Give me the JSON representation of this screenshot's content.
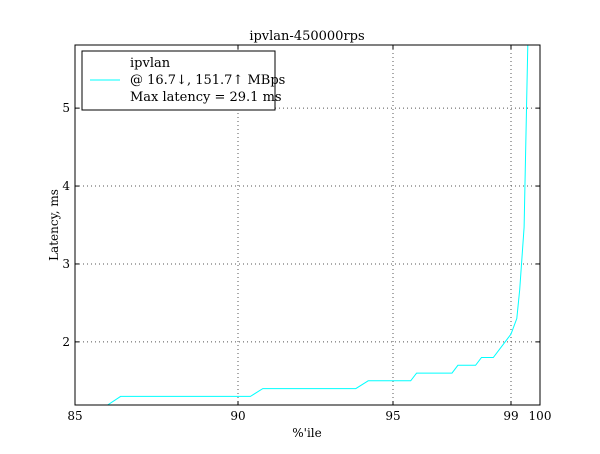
{
  "chart_data": {
    "type": "line",
    "title": "ipvlan-450000rps",
    "xlabel": "%'ile",
    "ylabel": "Latency, ms",
    "xlim": [
      85,
      100
    ],
    "ylim": [
      1.19,
      5.81
    ],
    "xticks": [
      85,
      90,
      95,
      99,
      100
    ],
    "yticks": [
      2,
      3,
      4,
      5
    ],
    "grid": true,
    "legend_placement": "top-left",
    "series": [
      {
        "name": "ipvlan",
        "legend_lines": [
          "ipvlan",
          "@ 16.7↓, 151.7↑ MBps",
          "Max latency = 29.1 ms"
        ],
        "color": "#00ffff",
        "x": [
          86.0,
          86.4,
          90.4,
          90.8,
          93.8,
          94.2,
          95.6,
          95.8,
          97.0,
          97.2,
          97.8,
          98.0,
          98.4,
          99.0,
          99.2,
          99.3,
          99.45,
          99.58,
          99.7
        ],
        "y": [
          1.19,
          1.3,
          1.3,
          1.4,
          1.4,
          1.5,
          1.5,
          1.6,
          1.6,
          1.7,
          1.7,
          1.8,
          1.8,
          2.1,
          2.3,
          2.67,
          3.47,
          5.81,
          8.0
        ]
      }
    ]
  }
}
